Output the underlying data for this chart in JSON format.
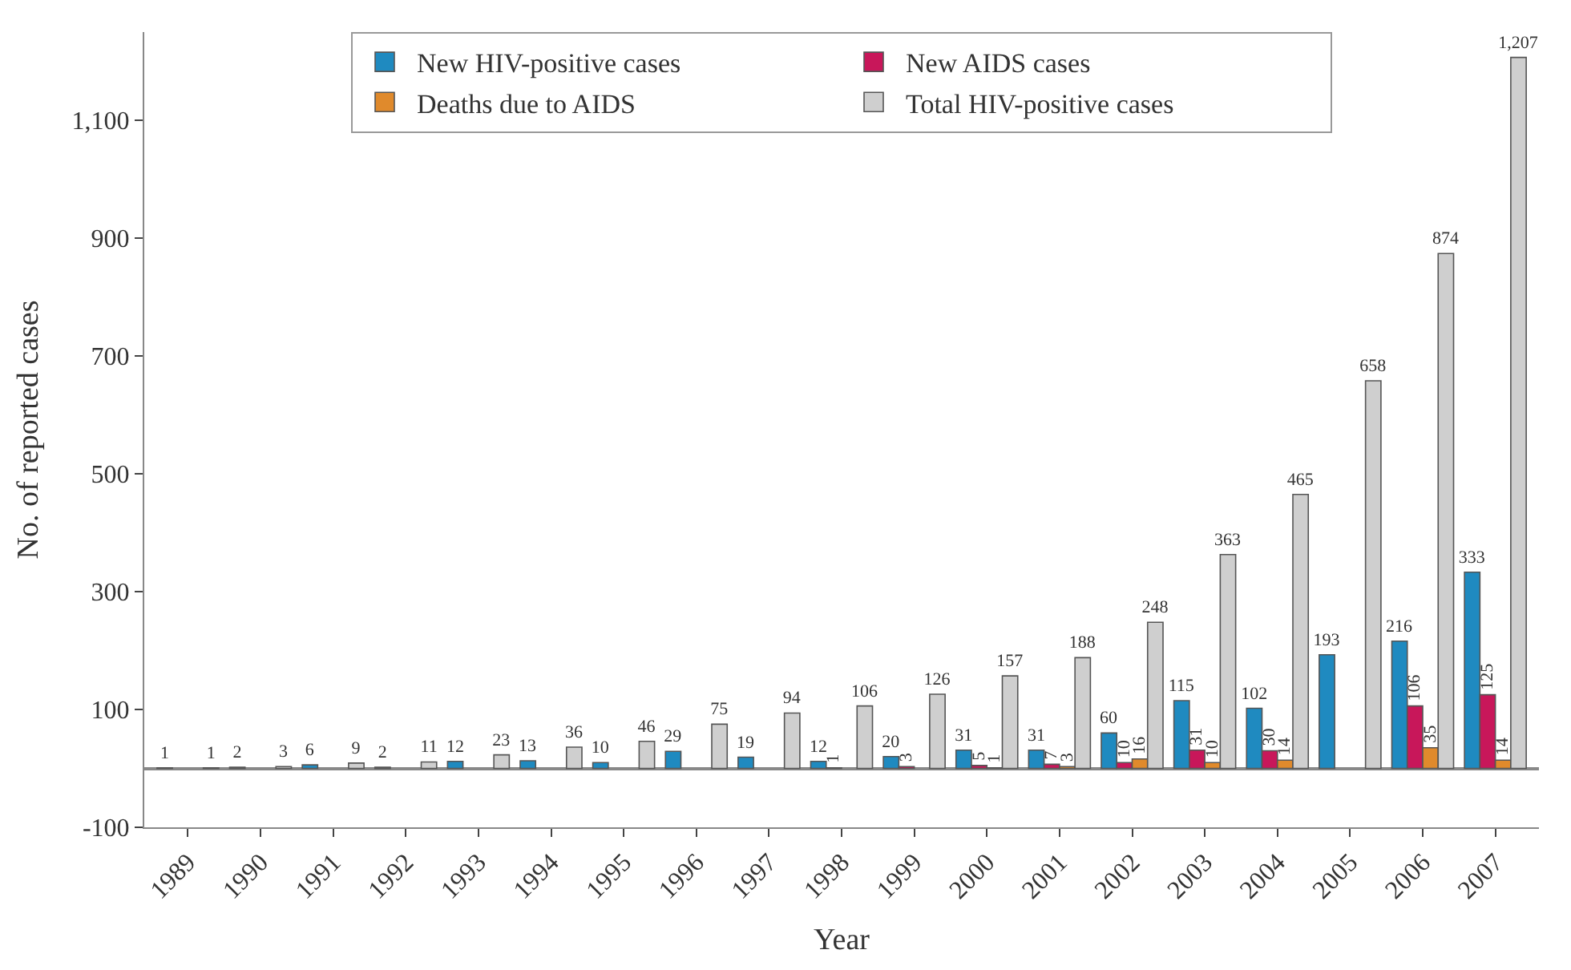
{
  "chart_data": {
    "type": "bar",
    "xlabel": "Year",
    "ylabel": "No. of reported cases",
    "categories": [
      "1989",
      "1990",
      "1991",
      "1992",
      "1993",
      "1994",
      "1995",
      "1996",
      "1997",
      "1998",
      "1999",
      "2000",
      "2001",
      "2002",
      "2003",
      "2004",
      "2005",
      "2006",
      "2007"
    ],
    "series": [
      {
        "name": "New HIV-positive cases",
        "color": "#1f8ac0",
        "values": [
          1,
          2,
          6,
          2,
          12,
          13,
          10,
          29,
          19,
          12,
          20,
          31,
          31,
          60,
          115,
          102,
          193,
          216,
          333
        ],
        "value_labels": [
          "1",
          "2",
          "6",
          "2",
          "12",
          "13",
          "10",
          "29",
          "19",
          "12",
          "20",
          "31",
          "31",
          "60",
          "115",
          "102",
          "193",
          "216",
          "333"
        ]
      },
      {
        "name": "New AIDS cases",
        "color": "#c8175a",
        "values": [
          null,
          null,
          null,
          null,
          null,
          null,
          null,
          null,
          null,
          1,
          3,
          5,
          7,
          10,
          31,
          30,
          null,
          106,
          125
        ],
        "value_labels": [
          null,
          null,
          null,
          null,
          null,
          null,
          null,
          null,
          null,
          "1",
          "3",
          "5",
          "7",
          "10",
          "31",
          "30",
          null,
          "106",
          "125"
        ]
      },
      {
        "name": "Deaths due to AIDS",
        "color": "#e08a2c",
        "values": [
          null,
          null,
          null,
          null,
          null,
          null,
          null,
          null,
          null,
          null,
          null,
          1,
          3,
          16,
          10,
          14,
          null,
          35,
          14
        ],
        "value_labels": [
          null,
          null,
          null,
          null,
          null,
          null,
          null,
          null,
          null,
          null,
          null,
          "1",
          "3",
          "16",
          "10",
          "14",
          null,
          "35",
          "14"
        ]
      },
      {
        "name": "Total HIV-positive cases",
        "color": "#cfcfcf",
        "values": [
          1,
          3,
          9,
          11,
          23,
          36,
          46,
          75,
          94,
          106,
          126,
          157,
          188,
          248,
          363,
          465,
          658,
          874,
          1207
        ],
        "value_labels": [
          "1",
          "3",
          "9",
          "11",
          "23",
          "36",
          "46",
          "75",
          "94",
          "106",
          "126",
          "157",
          "188",
          "248",
          "363",
          "465",
          "658",
          "874",
          "1,207"
        ]
      }
    ],
    "ylim": [
      -100,
      1250
    ],
    "yticks": [
      -100,
      100,
      300,
      500,
      700,
      900,
      {
        "value": 1100,
        "label": "1,100"
      }
    ],
    "legend": "top"
  }
}
